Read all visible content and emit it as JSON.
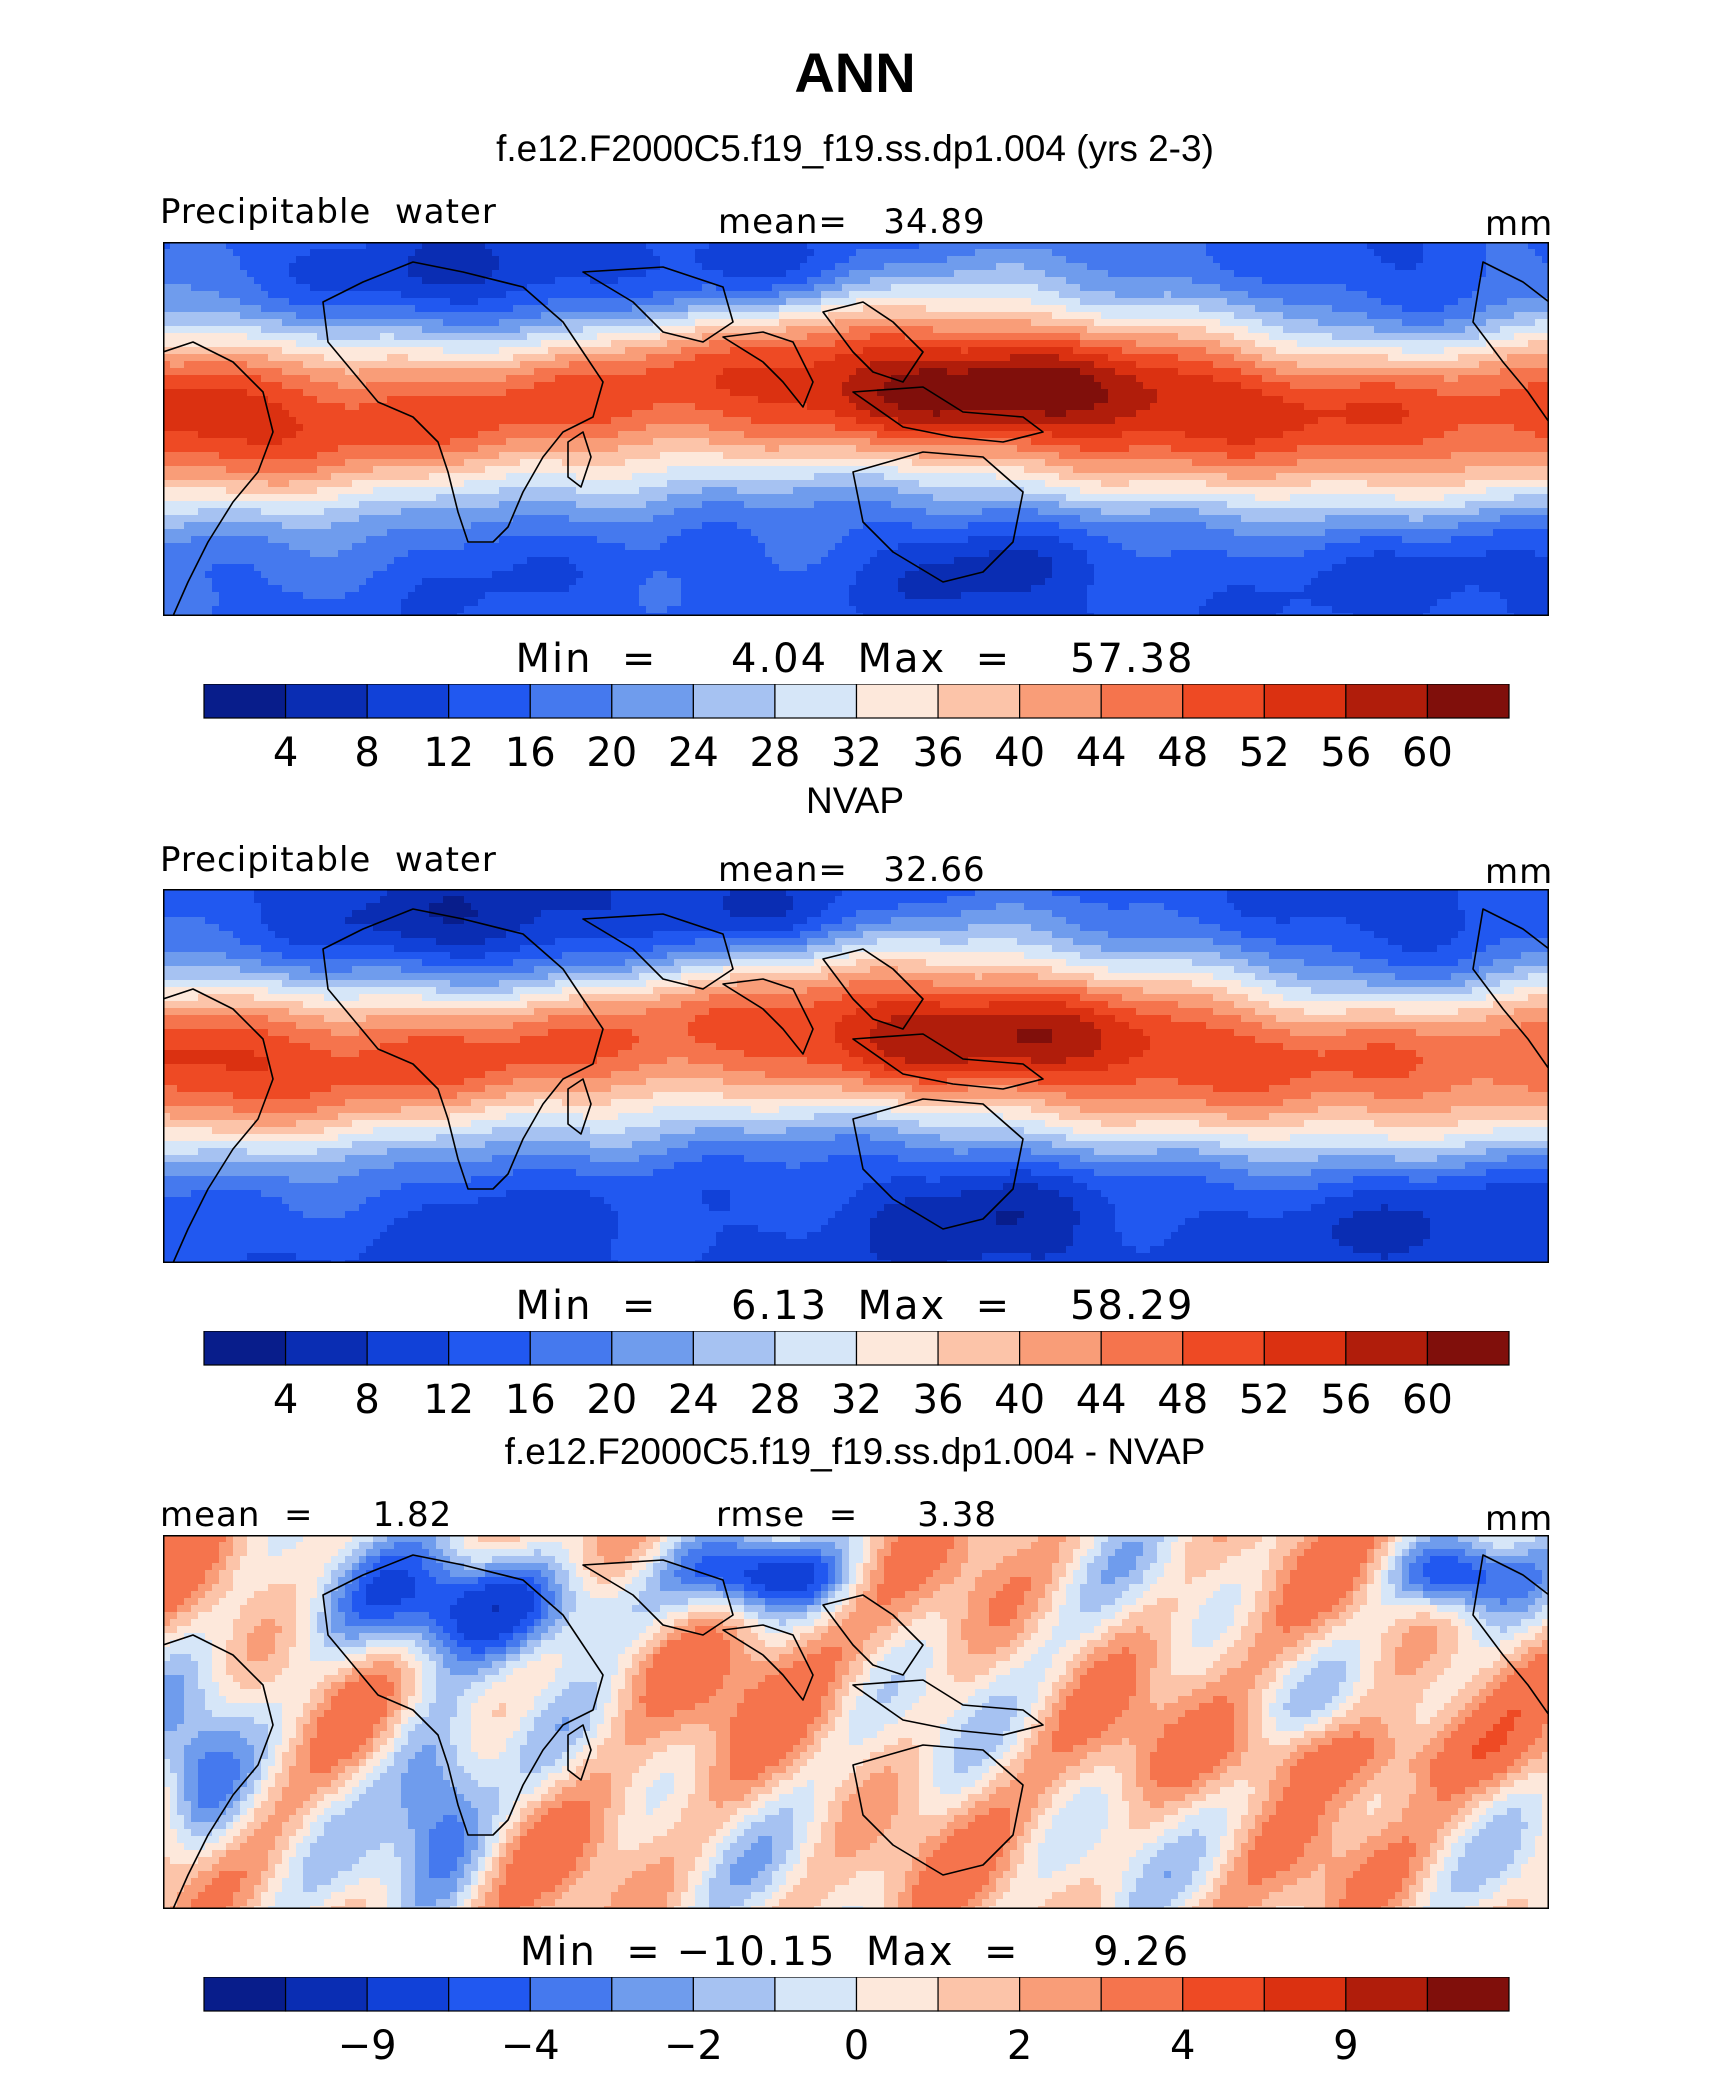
{
  "figure_title": "ANN",
  "colors": {
    "levels": [
      "#081d8b",
      "#0a2db3",
      "#1141d8",
      "#2158f0",
      "#4579ee",
      "#6f9ced",
      "#a6c2f2",
      "#d6e6f8",
      "#fde8db",
      "#fcc4a9",
      "#f99d78",
      "#f5744d",
      "#ee4a24",
      "#db3111",
      "#b01d0b",
      "#800f0b"
    ],
    "coast": "#000000"
  },
  "panels": [
    {
      "case_title": "f.e12.F2000C5.f19_f19.ss.dp1.004 (yrs 2-3)",
      "left_label": "Precipitable  water",
      "center_label": "mean=   34.89",
      "units": "mm",
      "stats": "Min  =     4.04  Max  =    57.38",
      "colorbar_ticks": [
        "4",
        "8",
        "12",
        "16",
        "20",
        "24",
        "28",
        "32",
        "36",
        "40",
        "44",
        "48",
        "52",
        "56",
        "60"
      ]
    },
    {
      "case_title": "NVAP",
      "left_label": "Precipitable  water",
      "center_label": "mean=   32.66",
      "units": "mm",
      "stats": "Min  =     6.13  Max  =    58.29",
      "colorbar_ticks": [
        "4",
        "8",
        "12",
        "16",
        "20",
        "24",
        "28",
        "32",
        "36",
        "40",
        "44",
        "48",
        "52",
        "56",
        "60"
      ]
    },
    {
      "case_title": "f.e12.F2000C5.f19_f19.ss.dp1.004 - NVAP",
      "left_label": "mean  =     1.82",
      "center_label": "rmse  =     3.38",
      "units": "mm",
      "stats": "Min  = −10.15  Max  =     9.26",
      "colorbar_ticks": [
        "−9",
        "−4",
        "−2",
        "0",
        "2",
        "4",
        "9"
      ]
    }
  ],
  "chart_data": [
    {
      "type": "heatmap",
      "title": "f.e12.F2000C5.f19_f19.ss.dp1.004 (yrs 2-3)",
      "variable": "Precipitable water",
      "units": "mm",
      "mean": 34.89,
      "min": 4.04,
      "max": 57.38,
      "levels": [
        4,
        8,
        12,
        16,
        20,
        24,
        28,
        32,
        36,
        40,
        44,
        48,
        52,
        56,
        60
      ]
    },
    {
      "type": "heatmap",
      "title": "NVAP",
      "variable": "Precipitable water",
      "units": "mm",
      "mean": 32.66,
      "min": 6.13,
      "max": 58.29,
      "levels": [
        4,
        8,
        12,
        16,
        20,
        24,
        28,
        32,
        36,
        40,
        44,
        48,
        52,
        56,
        60
      ]
    },
    {
      "type": "heatmap",
      "title": "f.e12.F2000C5.f19_f19.ss.dp1.004 - NVAP",
      "units": "mm",
      "mean": 1.82,
      "rmse": 3.38,
      "min": -10.15,
      "max": 9.26,
      "levels": [
        -9,
        -4,
        -2,
        0,
        2,
        4,
        9
      ]
    }
  ]
}
